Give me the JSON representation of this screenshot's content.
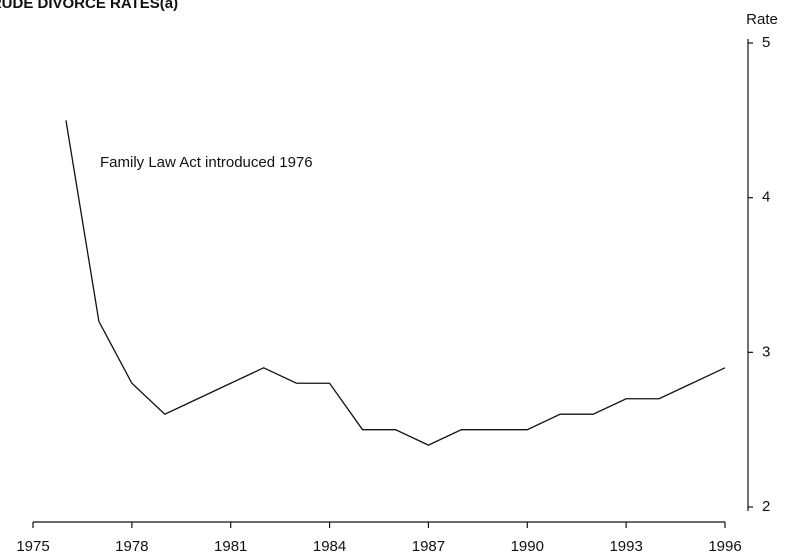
{
  "chart_data": {
    "type": "line",
    "title": "CRUDE DIVORCE RATES(a)",
    "y_label": "Rate",
    "annotation": "Family Law Act introduced 1976",
    "x": [
      1976,
      1977,
      1978,
      1979,
      1980,
      1981,
      1982,
      1983,
      1984,
      1985,
      1986,
      1987,
      1988,
      1989,
      1990,
      1991,
      1992,
      1993,
      1994,
      1995,
      1996
    ],
    "values": [
      4.5,
      3.2,
      2.8,
      2.6,
      2.7,
      2.8,
      2.9,
      2.8,
      2.8,
      2.5,
      2.5,
      2.4,
      2.5,
      2.5,
      2.5,
      2.6,
      2.6,
      2.7,
      2.7,
      2.8,
      2.9
    ],
    "color": "#111111",
    "xlim": [
      1975,
      1996
    ],
    "xticks": [
      1975,
      1978,
      1981,
      1984,
      1987,
      1990,
      1993,
      1996
    ],
    "ylim": [
      2,
      5
    ],
    "yticks": [
      2,
      3,
      4,
      5
    ],
    "y_axis_side": "right"
  }
}
